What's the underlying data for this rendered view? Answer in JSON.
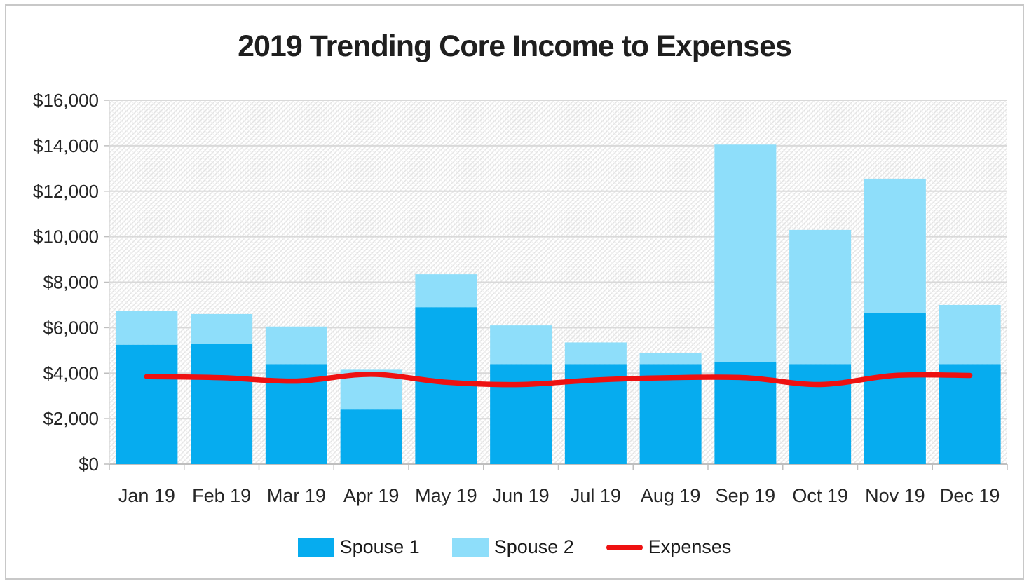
{
  "chart_data": {
    "type": "bar",
    "stacked": true,
    "title": "2019 Trending Core Income to Expenses",
    "categories": [
      "Jan 19",
      "Feb 19",
      "Mar 19",
      "Apr 19",
      "May 19",
      "Jun 19",
      "Jul 19",
      "Aug 19",
      "Sep 19",
      "Oct 19",
      "Nov 19",
      "Dec 19"
    ],
    "series": [
      {
        "name": "Spouse 1",
        "type": "bar",
        "color": "#06ACEF",
        "values": [
          5250,
          5300,
          4400,
          2400,
          6900,
          4400,
          4400,
          4400,
          4500,
          4400,
          6650,
          4400
        ]
      },
      {
        "name": "Spouse 2",
        "type": "bar",
        "color": "#8EDEFA",
        "values": [
          1500,
          1300,
          1650,
          1750,
          1450,
          1700,
          950,
          500,
          9550,
          5900,
          5900,
          2600
        ]
      },
      {
        "name": "Expenses",
        "type": "line",
        "color": "#EE1111",
        "values": [
          3850,
          3800,
          3650,
          3950,
          3600,
          3500,
          3700,
          3800,
          3800,
          3500,
          3900,
          3900
        ]
      }
    ],
    "xlabel": "",
    "ylabel": "",
    "ylim": [
      0,
      16000
    ],
    "ytick_step": 2000,
    "ytick_labels": [
      "$0",
      "$2,000",
      "$4,000",
      "$6,000",
      "$8,000",
      "$10,000",
      "$12,000",
      "$14,000",
      "$16,000"
    ],
    "grid": true,
    "legend_position": "bottom",
    "plot_background": "light-diagonal-crosshatch"
  },
  "colors": {
    "grid": "#D9D9D9",
    "axis": "#BFBFBF",
    "tick_text": "#262626",
    "hatch_dark": "#E3E3E3",
    "hatch_light": "#F0F0F0",
    "frame_border": "#C8C8C8"
  }
}
